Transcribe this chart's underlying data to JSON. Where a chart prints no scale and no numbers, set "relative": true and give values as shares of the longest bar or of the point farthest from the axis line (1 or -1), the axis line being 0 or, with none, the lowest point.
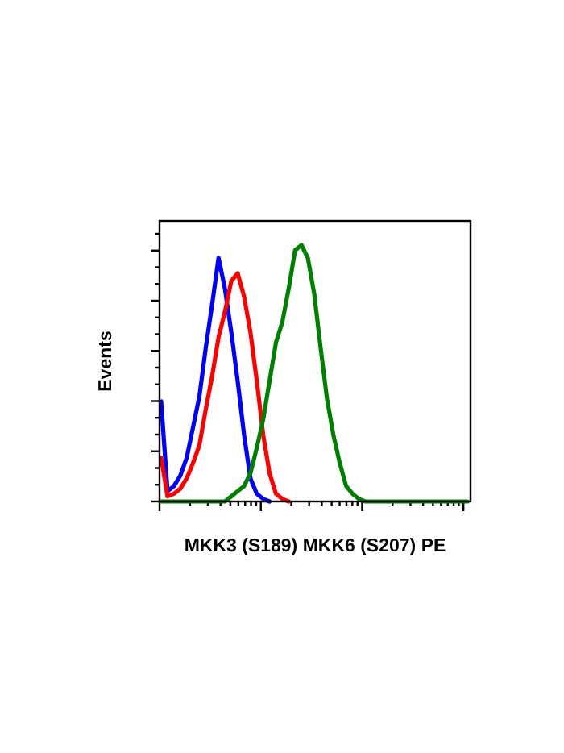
{
  "chart_data": {
    "type": "line",
    "relative": true,
    "xlabel": "MKK3 (S189) MKK6 (S207) PE",
    "ylabel": "Events",
    "categories": [
      null,
      null,
      null,
      null,
      null,
      null,
      null,
      null,
      null,
      null,
      null,
      null,
      null,
      null,
      null,
      null,
      null,
      null,
      null,
      null,
      null,
      null,
      null,
      null,
      null,
      null,
      null,
      null,
      null,
      null,
      null,
      null,
      null,
      null,
      null,
      null,
      null,
      null,
      null,
      null,
      null,
      null,
      null,
      null,
      null,
      null,
      null,
      null,
      null
    ],
    "series": [
      {
        "color": "#0000ff",
        "values": [
          0.39,
          0.04,
          0.06,
          0.1,
          0.17,
          0.29,
          0.41,
          0.6,
          0.77,
          0.95,
          0.83,
          0.66,
          0.47,
          0.26,
          0.09,
          0.03,
          0.01,
          0,
          null,
          null,
          null,
          null,
          null,
          null,
          null,
          null,
          null,
          null,
          null,
          null,
          null,
          null,
          null,
          null,
          null,
          null,
          null,
          null,
          null,
          null,
          null,
          null,
          null,
          null,
          null,
          null,
          null,
          null,
          null
        ]
      },
      {
        "color": "#ff0000",
        "values": [
          0.17,
          0.02,
          0.03,
          0.05,
          0.09,
          0.15,
          0.22,
          0.36,
          0.49,
          0.64,
          0.74,
          0.86,
          0.89,
          0.8,
          0.66,
          0.47,
          0.26,
          0.11,
          0.03,
          0.01,
          0,
          null,
          null,
          null,
          null,
          null,
          null,
          null,
          null,
          null,
          null,
          null,
          null,
          null,
          null,
          null,
          null,
          null,
          null,
          null,
          null,
          null,
          null,
          null,
          null,
          null,
          null,
          null,
          null
        ]
      },
      {
        "color": "#008000",
        "values": [
          0,
          0,
          0,
          0,
          0,
          0,
          0,
          0,
          0,
          0,
          0,
          0.02,
          0.04,
          0.06,
          0.11,
          0.21,
          0.32,
          0.47,
          0.62,
          0.7,
          0.83,
          0.98,
          1,
          0.95,
          0.81,
          0.6,
          0.4,
          0.26,
          0.15,
          0.06,
          0.03,
          0.01,
          0,
          0,
          0,
          0,
          0,
          0,
          0,
          0,
          0,
          0,
          0,
          0,
          0,
          0,
          0,
          0,
          0
        ]
      }
    ],
    "line_style": "solid"
  }
}
